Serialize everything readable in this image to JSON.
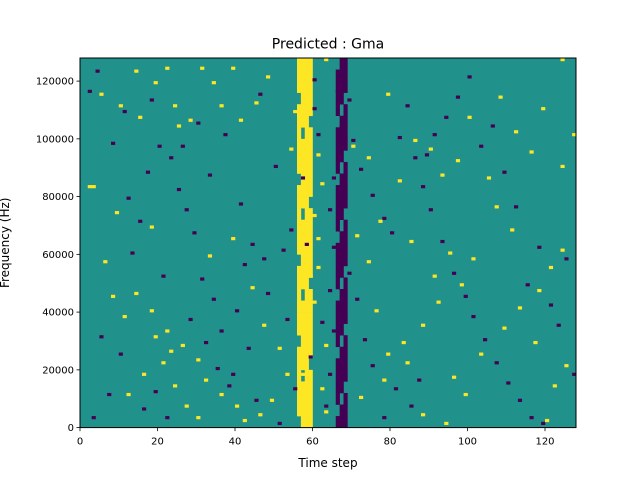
{
  "chart_data": {
    "type": "heatmap",
    "title": "Predicted : Gma",
    "xlabel": "Time step",
    "ylabel": "Frequency (Hz)",
    "xlim": [
      0,
      128
    ],
    "ylim": [
      0,
      128000
    ],
    "x_ticks": [
      0,
      20,
      40,
      60,
      80,
      100,
      120
    ],
    "x_tick_labels": [
      "0",
      "20",
      "40",
      "60",
      "80",
      "100",
      "120"
    ],
    "y_ticks": [
      0,
      20000,
      40000,
      60000,
      80000,
      100000,
      120000
    ],
    "y_tick_labels": [
      "0",
      "20000",
      "40000",
      "60000",
      "80000",
      "100000",
      "120000"
    ],
    "grid": false,
    "colormap": "viridis",
    "levels": {
      "low": "#440154",
      "mid": "#21918c",
      "high": "#fde725"
    },
    "background_level": "mid",
    "time_bins": 128,
    "freq_bins": 32,
    "freq_bin_width_hz": 4000,
    "band_yellow": [
      [
        56,
        59
      ]
    ],
    "band_dark": [
      [
        66,
        68
      ]
    ],
    "high_cells": [
      [
        2,
        83
      ],
      [
        3,
        83
      ],
      [
        5,
        115
      ],
      [
        10,
        111
      ],
      [
        14,
        123
      ],
      [
        15,
        107
      ],
      [
        19,
        119
      ],
      [
        22,
        124
      ],
      [
        24,
        111
      ],
      [
        25,
        104
      ],
      [
        28,
        106
      ],
      [
        31,
        124
      ],
      [
        34,
        119
      ],
      [
        36,
        111
      ],
      [
        39,
        124
      ],
      [
        41,
        106
      ],
      [
        45,
        112
      ],
      [
        48,
        121
      ],
      [
        54,
        96
      ],
      [
        55,
        109
      ],
      [
        63,
        127
      ],
      [
        70,
        97
      ],
      [
        74,
        93
      ],
      [
        79,
        115
      ],
      [
        82,
        85
      ],
      [
        86,
        99
      ],
      [
        90,
        96
      ],
      [
        93,
        87
      ],
      [
        97,
        92
      ],
      [
        100,
        107
      ],
      [
        105,
        86
      ],
      [
        108,
        114
      ],
      [
        112,
        102
      ],
      [
        116,
        95
      ],
      [
        119,
        110
      ],
      [
        124,
        127
      ],
      [
        127,
        101
      ],
      [
        124,
        90
      ],
      [
        61,
        94
      ],
      [
        62,
        84
      ],
      [
        60,
        73
      ],
      [
        61,
        55
      ],
      [
        60,
        43
      ],
      [
        63,
        28
      ],
      [
        62,
        13
      ],
      [
        63,
        5
      ],
      [
        61,
        65
      ],
      [
        9,
        74
      ],
      [
        18,
        69
      ],
      [
        33,
        59
      ],
      [
        39,
        65
      ],
      [
        44,
        48
      ],
      [
        47,
        35
      ],
      [
        51,
        27
      ],
      [
        53,
        18
      ],
      [
        49,
        9
      ],
      [
        46,
        4
      ],
      [
        14,
        46
      ],
      [
        18,
        40
      ],
      [
        22,
        33
      ],
      [
        26,
        28
      ],
      [
        30,
        23
      ],
      [
        32,
        16
      ],
      [
        36,
        11
      ],
      [
        40,
        7
      ],
      [
        42,
        2
      ],
      [
        30,
        3
      ],
      [
        21,
        22
      ],
      [
        24,
        14
      ],
      [
        27,
        7
      ],
      [
        6,
        57
      ],
      [
        8,
        45
      ],
      [
        11,
        38
      ],
      [
        19,
        31
      ],
      [
        23,
        26
      ],
      [
        16,
        18
      ],
      [
        12,
        11
      ],
      [
        72,
        10
      ],
      [
        78,
        16
      ],
      [
        84,
        22
      ],
      [
        88,
        4
      ],
      [
        94,
        1
      ],
      [
        96,
        17
      ],
      [
        99,
        11
      ],
      [
        103,
        25
      ],
      [
        109,
        34
      ],
      [
        113,
        41
      ],
      [
        118,
        47
      ],
      [
        121,
        55
      ],
      [
        124,
        61
      ],
      [
        120,
        2
      ],
      [
        122,
        14
      ],
      [
        125,
        21
      ],
      [
        117,
        29
      ],
      [
        111,
        68
      ],
      [
        107,
        76
      ],
      [
        101,
        58
      ],
      [
        98,
        49
      ],
      [
        92,
        43
      ],
      [
        88,
        35
      ],
      [
        83,
        29
      ],
      [
        79,
        25
      ],
      [
        76,
        40
      ],
      [
        74,
        57
      ],
      [
        71,
        66
      ],
      [
        77,
        71
      ],
      [
        85,
        64
      ],
      [
        91,
        52
      ],
      [
        95,
        60
      ],
      [
        57,
        18
      ],
      [
        58,
        35
      ],
      [
        59,
        52
      ],
      [
        56,
        70
      ]
    ],
    "low_cells": [
      [
        4,
        123
      ],
      [
        11,
        109
      ],
      [
        15,
        71
      ],
      [
        18,
        113
      ],
      [
        21,
        52
      ],
      [
        26,
        97
      ],
      [
        30,
        105
      ],
      [
        33,
        87
      ],
      [
        37,
        101
      ],
      [
        41,
        77
      ],
      [
        44,
        63
      ],
      [
        47,
        58
      ],
      [
        50,
        90
      ],
      [
        53,
        37
      ],
      [
        55,
        13
      ],
      [
        51,
        1
      ],
      [
        60,
        120
      ],
      [
        66,
        116
      ],
      [
        67,
        104
      ],
      [
        69,
        113
      ],
      [
        70,
        99
      ],
      [
        72,
        89
      ],
      [
        75,
        80
      ],
      [
        78,
        72
      ],
      [
        80,
        67
      ],
      [
        82,
        100
      ],
      [
        84,
        111
      ],
      [
        86,
        93
      ],
      [
        88,
        83
      ],
      [
        90,
        75
      ],
      [
        93,
        64
      ],
      [
        96,
        53
      ],
      [
        99,
        45
      ],
      [
        101,
        38
      ],
      [
        104,
        30
      ],
      [
        107,
        22
      ],
      [
        110,
        15
      ],
      [
        113,
        9
      ],
      [
        116,
        3
      ],
      [
        119,
        1
      ],
      [
        121,
        42
      ],
      [
        123,
        35
      ],
      [
        125,
        58
      ],
      [
        127,
        18
      ],
      [
        118,
        62
      ],
      [
        115,
        49
      ],
      [
        112,
        76
      ],
      [
        109,
        88
      ],
      [
        106,
        104
      ],
      [
        103,
        97
      ],
      [
        100,
        121
      ],
      [
        97,
        114
      ],
      [
        94,
        107
      ],
      [
        91,
        101
      ],
      [
        89,
        94
      ],
      [
        87,
        16
      ],
      [
        85,
        7
      ],
      [
        81,
        13
      ],
      [
        78,
        3
      ],
      [
        75,
        21
      ],
      [
        73,
        30
      ],
      [
        71,
        44
      ],
      [
        69,
        53
      ],
      [
        65,
        62
      ],
      [
        64,
        75
      ],
      [
        65,
        86
      ],
      [
        64,
        47
      ],
      [
        65,
        33
      ],
      [
        64,
        18
      ],
      [
        63,
        7
      ],
      [
        61,
        101
      ],
      [
        60,
        110
      ],
      [
        62,
        36
      ],
      [
        46,
        115
      ],
      [
        43,
        27
      ],
      [
        39,
        18
      ],
      [
        36,
        33
      ],
      [
        34,
        44
      ],
      [
        31,
        51
      ],
      [
        29,
        67
      ],
      [
        27,
        75
      ],
      [
        25,
        82
      ],
      [
        23,
        93
      ],
      [
        20,
        97
      ],
      [
        17,
        88
      ],
      [
        13,
        60
      ],
      [
        10,
        25
      ],
      [
        7,
        11
      ],
      [
        5,
        31
      ],
      [
        3,
        3
      ],
      [
        2,
        116
      ],
      [
        8,
        98
      ],
      [
        12,
        79
      ],
      [
        16,
        6
      ],
      [
        19,
        12
      ],
      [
        22,
        3
      ],
      [
        28,
        37
      ],
      [
        32,
        29
      ],
      [
        35,
        20
      ],
      [
        38,
        14
      ],
      [
        40,
        40
      ],
      [
        42,
        56
      ],
      [
        45,
        9
      ],
      [
        48,
        46
      ],
      [
        52,
        61
      ],
      [
        54,
        68
      ],
      [
        57,
        86
      ],
      [
        58,
        63
      ],
      [
        59,
        24
      ]
    ]
  }
}
